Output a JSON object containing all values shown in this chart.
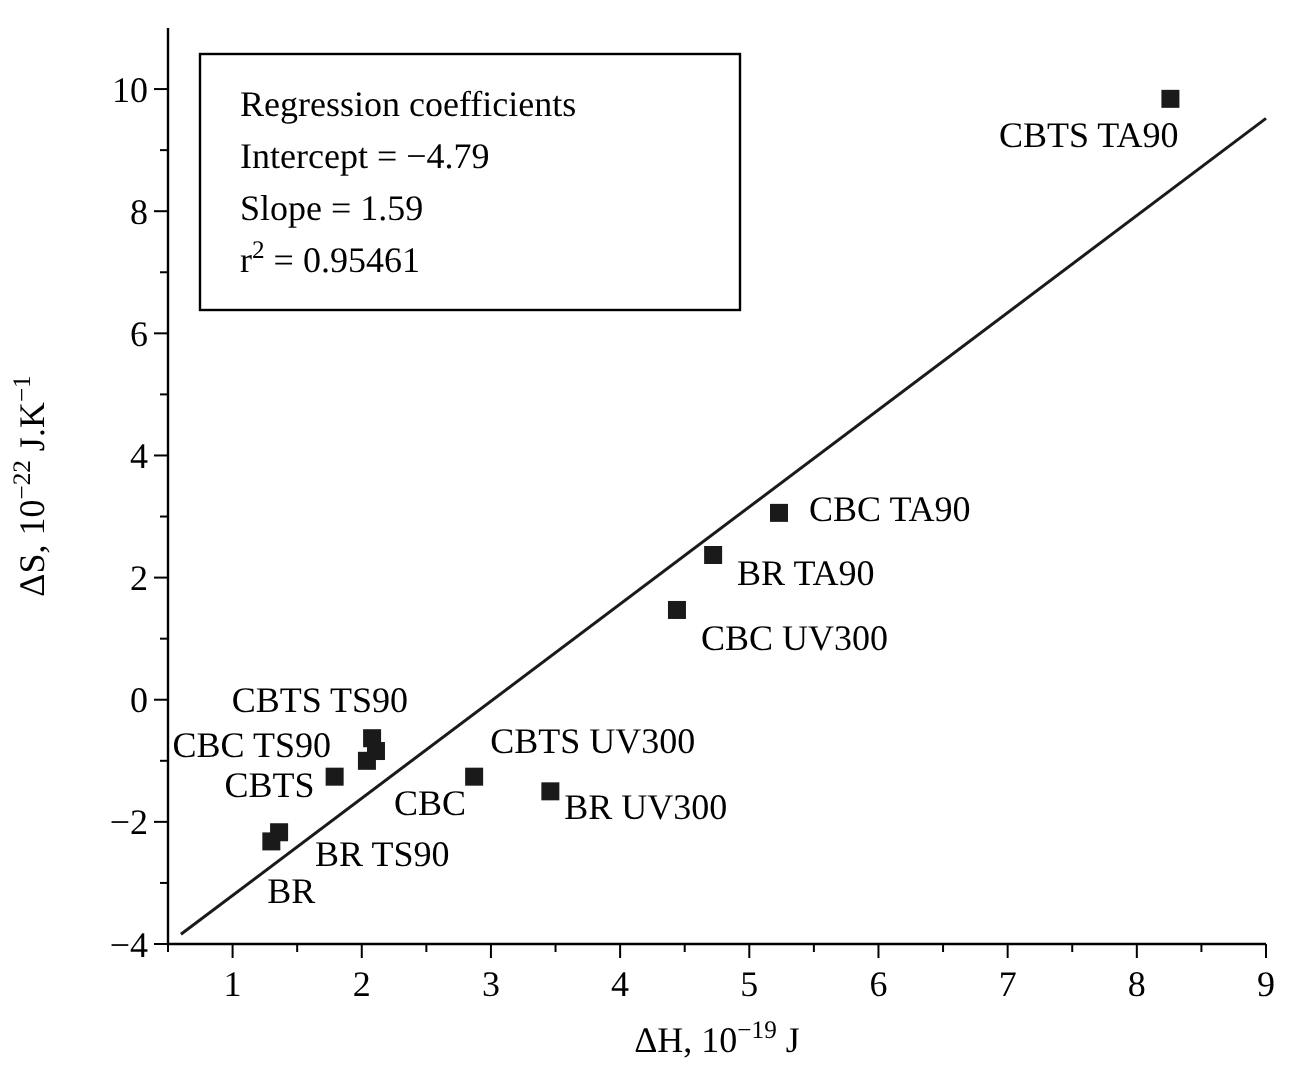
{
  "chart_data": {
    "type": "scatter",
    "xlabel": "ΔH, 10$^{−19}$ J",
    "ylabel": "ΔS, 10$^{−22}$ J.K$^{−1}$",
    "xlim": [
      0.5,
      9
    ],
    "ylim": [
      -4,
      11
    ],
    "xticks": [
      {
        "value": 0.5,
        "label": null
      },
      1,
      {
        "value": 1.5,
        "label": null
      },
      2,
      {
        "value": 2.5,
        "label": null
      },
      3,
      {
        "value": 3.5,
        "label": null
      },
      4,
      {
        "value": 4.5,
        "label": null
      },
      5,
      {
        "value": 5.5,
        "label": null
      },
      6,
      {
        "value": 6.5,
        "label": null
      },
      7,
      {
        "value": 7.5,
        "label": null
      },
      8,
      {
        "value": 8.5,
        "label": null
      },
      9
    ],
    "yticks": [
      -4,
      {
        "value": -3,
        "label": null
      },
      -2,
      {
        "value": -1,
        "label": null
      },
      {
        "value": 0,
        "label": "0"
      },
      {
        "value": 1,
        "label": null
      },
      2,
      {
        "value": 3,
        "label": null
      },
      4,
      {
        "value": 5,
        "label": null
      },
      6,
      {
        "value": 7,
        "label": null
      },
      8,
      {
        "value": 9,
        "label": null
      },
      10
    ],
    "marker": "square",
    "grid": false,
    "series": [
      {
        "color": "#1a1a1a",
        "x": [
          8.26,
          5.23,
          4.72,
          4.44,
          2.08,
          2.11,
          2.04,
          1.79,
          2.87,
          3.46,
          1.36,
          1.3
        ],
        "values": [
          9.84,
          3.06,
          2.37,
          1.47,
          -0.63,
          -0.84,
          -1.0,
          -1.26,
          -1.26,
          -1.5,
          -2.17,
          -2.32
        ]
      },
      {
        "type": "line",
        "color": "#1a1a1a",
        "line_style": "solid",
        "marker": "none",
        "x": [
          0.6,
          9
        ],
        "values": [
          -3.84,
          9.52
        ]
      }
    ],
    "annotations": [
      "Regression coefficients",
      "Intercept = −4.79",
      "Slope = 1.59",
      "r$^{2}$ = 0.95461",
      {
        "text": "CBTS TA90",
        "x": 8.26,
        "y": 9.84
      },
      {
        "text": "CBC TA90",
        "x": 5.23,
        "y": 3.06
      },
      {
        "text": "BR TA90",
        "x": 4.72,
        "y": 2.37
      },
      {
        "text": "CBC UV300",
        "x": 4.44,
        "y": 1.47
      },
      {
        "text": "CBTS TS90",
        "x": 2.08,
        "y": -0.63
      },
      {
        "text": "CBC TS90",
        "x": 2.04,
        "y": -1.0
      },
      {
        "text": "CBTS",
        "x": 1.79,
        "y": -1.26
      },
      {
        "text": "CBC",
        "x": 2.87,
        "y": -1.26
      },
      {
        "text": "CBTS UV300",
        "x": 2.87,
        "y": -1.26
      },
      {
        "text": "BR UV300",
        "x": 3.46,
        "y": -1.5
      },
      {
        "text": "BR TS90",
        "x": 1.36,
        "y": -2.17
      },
      {
        "text": "BR",
        "x": 1.3,
        "y": -2.32
      }
    ]
  }
}
